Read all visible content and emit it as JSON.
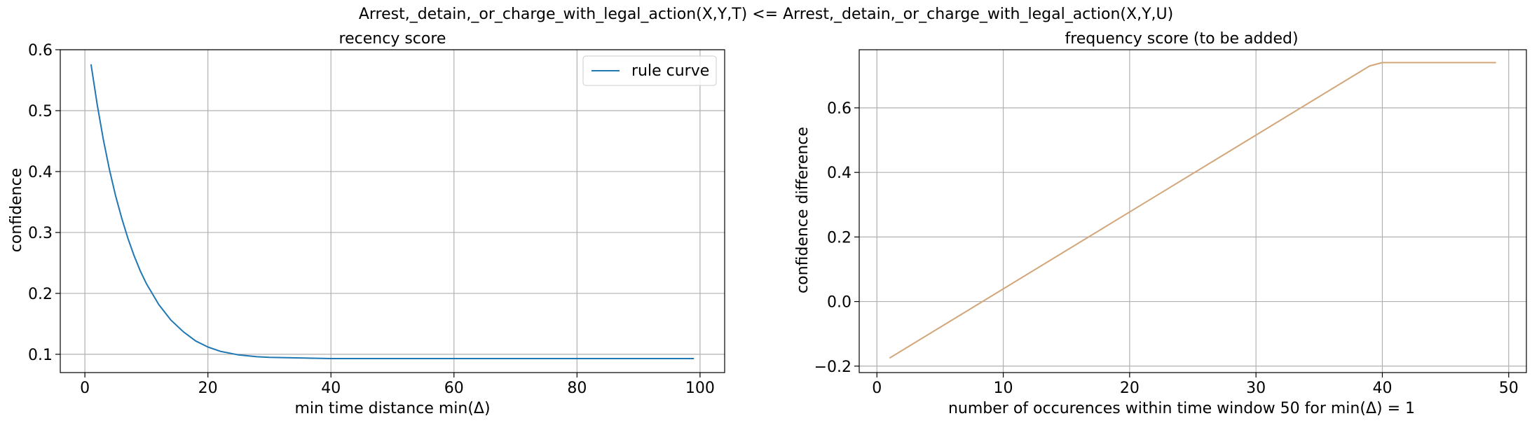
{
  "figure_title": "Arrest,_detain,_or_charge_with_legal_action(X,Y,T) <= Arrest,_detain,_or_charge_with_legal_action(X,Y,U)",
  "colors": {
    "recency_curve": "#1f77b4",
    "frequency_curve": "#d2a679",
    "grid": "#b0b0b0",
    "axes": "#000000"
  },
  "chart_data": [
    {
      "type": "line",
      "title": "recency score",
      "xlabel": "min time distance min(Δ)",
      "ylabel": "confidence",
      "xlim": [
        -4.0,
        104.0
      ],
      "ylim": [
        0.07,
        0.6
      ],
      "xticks": [
        0,
        20,
        40,
        60,
        80,
        100
      ],
      "xtick_labels": [
        "0",
        "20",
        "40",
        "60",
        "80",
        "100"
      ],
      "yticks": [
        0.1,
        0.2,
        0.3,
        0.4,
        0.5,
        0.6
      ],
      "ytick_labels": [
        "0.1",
        "0.2",
        "0.3",
        "0.4",
        "0.5",
        "0.6"
      ],
      "grid": true,
      "legend": {
        "position": "upper-right",
        "entries": [
          "rule curve"
        ]
      },
      "series": [
        {
          "name": "rule curve",
          "x": [
            1,
            2,
            3,
            4,
            5,
            6,
            7,
            8,
            9,
            10,
            12,
            14,
            16,
            18,
            20,
            22,
            25,
            28,
            30,
            35,
            40,
            50,
            60,
            70,
            80,
            90,
            99
          ],
          "y": [
            0.576,
            0.51,
            0.453,
            0.403,
            0.36,
            0.323,
            0.29,
            0.262,
            0.237,
            0.216,
            0.182,
            0.156,
            0.137,
            0.122,
            0.112,
            0.105,
            0.099,
            0.096,
            0.095,
            0.094,
            0.093,
            0.093,
            0.093,
            0.093,
            0.093,
            0.093,
            0.093
          ]
        }
      ]
    },
    {
      "type": "line",
      "title": "frequency score (to be added)",
      "xlabel": "number of occurences within time window 50 for min(Δ) = 1",
      "ylabel": "confidence difference",
      "xlim": [
        -1.4,
        51.4
      ],
      "ylim": [
        -0.22,
        0.78
      ],
      "xticks": [
        0,
        10,
        20,
        30,
        40,
        50
      ],
      "xtick_labels": [
        "0",
        "10",
        "20",
        "30",
        "40",
        "50"
      ],
      "yticks": [
        -0.2,
        0.0,
        0.2,
        0.4,
        0.6
      ],
      "ytick_labels": [
        "−0.2",
        "0.0",
        "0.2",
        "0.4",
        "0.6"
      ],
      "grid": true,
      "series": [
        {
          "x": [
            1,
            39,
            40,
            49
          ],
          "y": [
            -0.175,
            0.73,
            0.74,
            0.74
          ]
        }
      ]
    }
  ]
}
